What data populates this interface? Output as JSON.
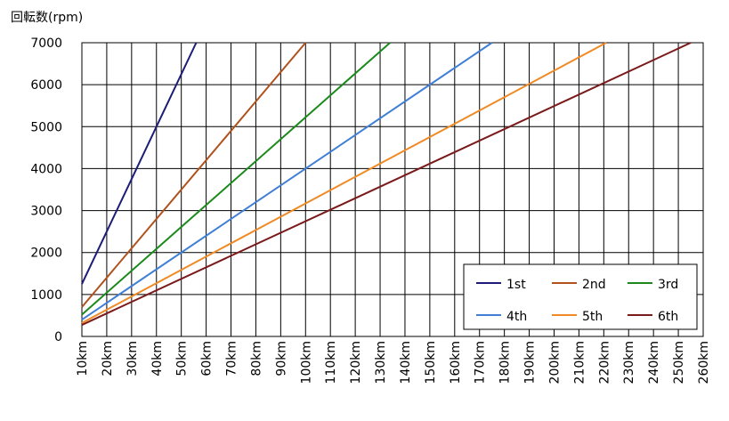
{
  "chart_data": {
    "type": "line",
    "ylabel": "回転数(rpm)",
    "xlim": [
      10,
      260
    ],
    "xticks": [
      {
        "value": 10,
        "label": "10km"
      },
      {
        "value": 20,
        "label": "20km"
      },
      {
        "value": 30,
        "label": "30km"
      },
      {
        "value": 40,
        "label": "40km"
      },
      {
        "value": 50,
        "label": "50km"
      },
      {
        "value": 60,
        "label": "60km"
      },
      {
        "value": 70,
        "label": "70km"
      },
      {
        "value": 80,
        "label": "80km"
      },
      {
        "value": 90,
        "label": "90km"
      },
      {
        "value": 100,
        "label": "100km"
      },
      {
        "value": 110,
        "label": "110km"
      },
      {
        "value": 120,
        "label": "120km"
      },
      {
        "value": 130,
        "label": "130km"
      },
      {
        "value": 140,
        "label": "140km"
      },
      {
        "value": 150,
        "label": "150km"
      },
      {
        "value": 160,
        "label": "160km"
      },
      {
        "value": 170,
        "label": "170km"
      },
      {
        "value": 180,
        "label": "180km"
      },
      {
        "value": 190,
        "label": "190km"
      },
      {
        "value": 200,
        "label": "200km"
      },
      {
        "value": 210,
        "label": "210km"
      },
      {
        "value": 220,
        "label": "220km"
      },
      {
        "value": 230,
        "label": "230km"
      },
      {
        "value": 240,
        "label": "240km"
      },
      {
        "value": 250,
        "label": "250km"
      },
      {
        "value": 260,
        "label": "260km"
      }
    ],
    "ylim": [
      0,
      7000
    ],
    "yticks": [
      0,
      1000,
      2000,
      3000,
      4000,
      5000,
      6000,
      7000
    ],
    "grid": true,
    "legend": "lower right",
    "series": [
      {
        "name": "1st",
        "color": "#1c1c78",
        "x": [
          10,
          56
        ],
        "values": [
          1250,
          7000
        ]
      },
      {
        "name": "2nd",
        "color": "#b0521e",
        "x": [
          10,
          100
        ],
        "values": [
          700,
          7000
        ]
      },
      {
        "name": "3rd",
        "color": "#1b8a1b",
        "x": [
          10,
          134
        ],
        "values": [
          520,
          7000
        ]
      },
      {
        "name": "4th",
        "color": "#3f7fd6",
        "x": [
          10,
          175
        ],
        "values": [
          400,
          7000
        ]
      },
      {
        "name": "5th",
        "color": "#f08a24",
        "x": [
          10,
          221
        ],
        "values": [
          320,
          7000
        ]
      },
      {
        "name": "6th",
        "color": "#7a1a1a",
        "x": [
          10,
          255
        ],
        "values": [
          275,
          7000
        ]
      }
    ]
  }
}
